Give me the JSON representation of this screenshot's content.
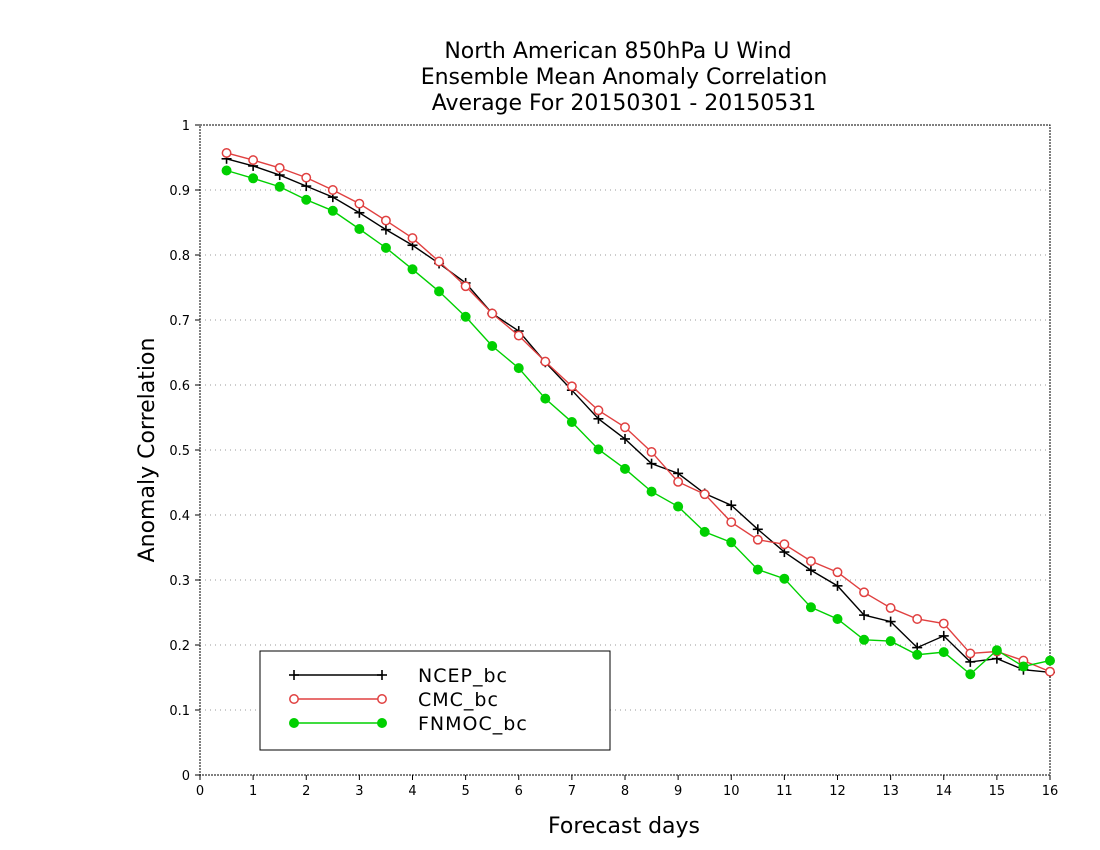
{
  "chart_data": {
    "type": "line",
    "title": [
      "North American 850hPa U Wind",
      "Ensemble Mean Anomaly Correlation",
      "Average For 20150301 - 20150531"
    ],
    "xlabel": "Forecast days",
    "ylabel": "Anomaly Correlation",
    "xlim": [
      0,
      16
    ],
    "ylim": [
      0,
      1
    ],
    "xticks": [
      "0",
      "1",
      "2",
      "3",
      "4",
      "5",
      "6",
      "7",
      "8",
      "9",
      "10",
      "11",
      "12",
      "13",
      "14",
      "15",
      "16"
    ],
    "yticks": [
      "0",
      "0.1",
      "0.2",
      "0.3",
      "0.4",
      "0.5",
      "0.6",
      "0.7",
      "0.8",
      "0.9",
      "1"
    ],
    "grid": "horizontal dotted",
    "legend_position": "bottom-left",
    "x": [
      0.5,
      1,
      1.5,
      2,
      2.5,
      3,
      3.5,
      4,
      4.5,
      5,
      5.5,
      6,
      6.5,
      7,
      7.5,
      8,
      8.5,
      9,
      9.5,
      10,
      10.5,
      11,
      11.5,
      12,
      12.5,
      13,
      13.5,
      14,
      14.5,
      15,
      15.5,
      16
    ],
    "series": [
      {
        "name": "NCEP_bc",
        "color": "#000000",
        "marker": "plus",
        "values": [
          0.948,
          0.937,
          0.923,
          0.906,
          0.889,
          0.865,
          0.839,
          0.815,
          0.787,
          0.757,
          0.71,
          0.683,
          0.635,
          0.592,
          0.548,
          0.517,
          0.479,
          0.464,
          0.433,
          0.415,
          0.378,
          0.343,
          0.315,
          0.291,
          0.246,
          0.236,
          0.196,
          0.214,
          0.174,
          0.179,
          0.162,
          0.158
        ]
      },
      {
        "name": "CMC_bc",
        "color": "#e04040",
        "marker": "open-circle",
        "values": [
          0.957,
          0.946,
          0.934,
          0.919,
          0.9,
          0.879,
          0.853,
          0.826,
          0.79,
          0.752,
          0.71,
          0.676,
          0.636,
          0.598,
          0.561,
          0.535,
          0.497,
          0.451,
          0.432,
          0.389,
          0.362,
          0.355,
          0.329,
          0.312,
          0.281,
          0.257,
          0.24,
          0.233,
          0.187,
          0.19,
          0.176,
          0.159
        ]
      },
      {
        "name": "FNMOC_bc",
        "color": "#00d000",
        "marker": "filled-circle",
        "values": [
          0.93,
          0.918,
          0.905,
          0.885,
          0.868,
          0.84,
          0.811,
          0.778,
          0.744,
          0.705,
          0.66,
          0.626,
          0.579,
          0.543,
          0.501,
          0.471,
          0.436,
          0.413,
          0.374,
          0.358,
          0.316,
          0.302,
          0.258,
          0.24,
          0.208,
          0.206,
          0.185,
          0.189,
          0.155,
          0.192,
          0.167,
          0.176
        ]
      }
    ]
  }
}
